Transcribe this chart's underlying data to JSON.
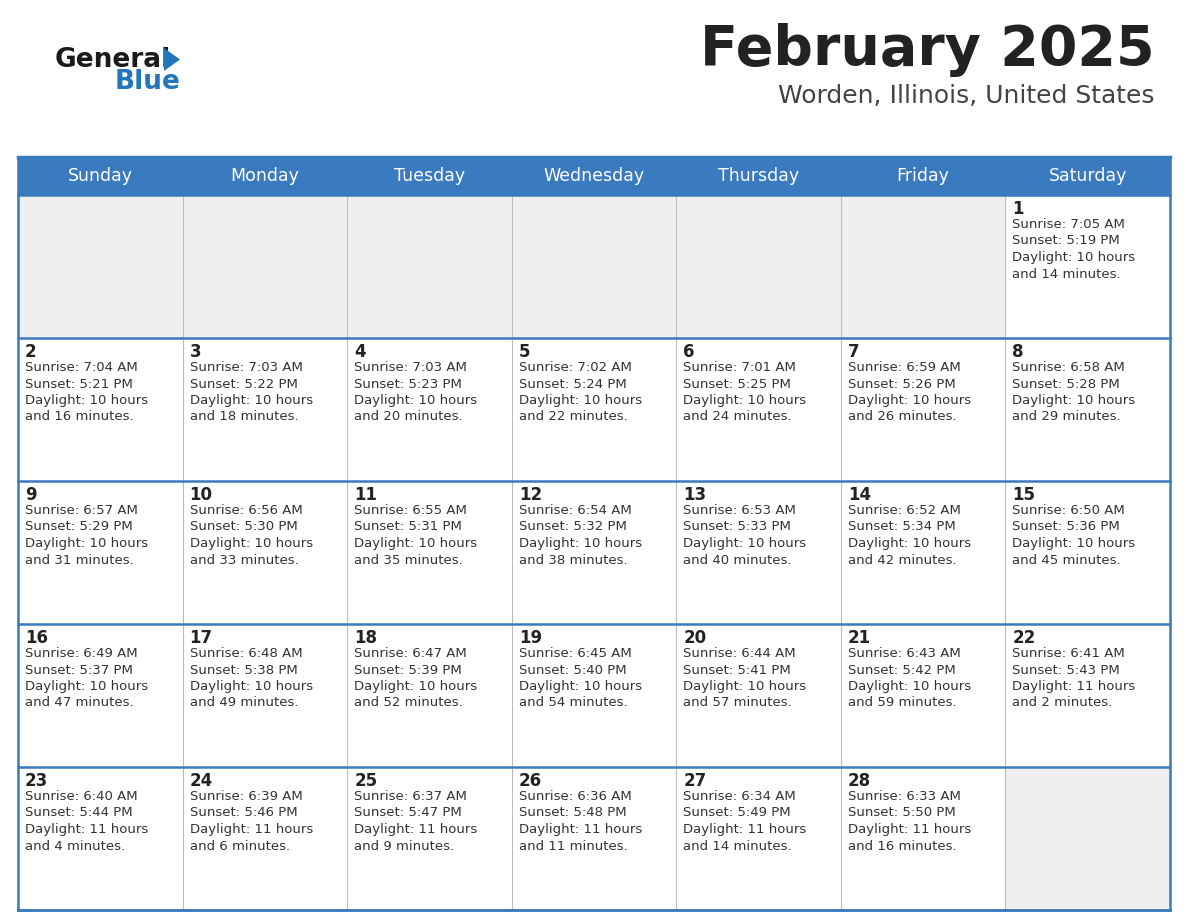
{
  "title": "February 2025",
  "subtitle": "Worden, Illinois, United States",
  "header_bg": "#3a7abf",
  "header_text_color": "#FFFFFF",
  "cell_bg_light": "#EFEFEF",
  "cell_bg_white": "#FFFFFF",
  "border_color": "#3a7abf",
  "grid_color": "#BBBBBB",
  "day_names": [
    "Sunday",
    "Monday",
    "Tuesday",
    "Wednesday",
    "Thursday",
    "Friday",
    "Saturday"
  ],
  "title_color": "#222222",
  "subtitle_color": "#444444",
  "day_num_color": "#222222",
  "info_color": "#333333",
  "logo_general_color": "#1a1a1a",
  "logo_blue_color": "#2575BB",
  "weeks": [
    [
      {
        "day": "",
        "sunrise": "",
        "sunset": "",
        "daylight": ""
      },
      {
        "day": "",
        "sunrise": "",
        "sunset": "",
        "daylight": ""
      },
      {
        "day": "",
        "sunrise": "",
        "sunset": "",
        "daylight": ""
      },
      {
        "day": "",
        "sunrise": "",
        "sunset": "",
        "daylight": ""
      },
      {
        "day": "",
        "sunrise": "",
        "sunset": "",
        "daylight": ""
      },
      {
        "day": "",
        "sunrise": "",
        "sunset": "",
        "daylight": ""
      },
      {
        "day": "1",
        "sunrise": "7:05 AM",
        "sunset": "5:19 PM",
        "daylight": "10 hours\nand 14 minutes."
      }
    ],
    [
      {
        "day": "2",
        "sunrise": "7:04 AM",
        "sunset": "5:21 PM",
        "daylight": "10 hours\nand 16 minutes."
      },
      {
        "day": "3",
        "sunrise": "7:03 AM",
        "sunset": "5:22 PM",
        "daylight": "10 hours\nand 18 minutes."
      },
      {
        "day": "4",
        "sunrise": "7:03 AM",
        "sunset": "5:23 PM",
        "daylight": "10 hours\nand 20 minutes."
      },
      {
        "day": "5",
        "sunrise": "7:02 AM",
        "sunset": "5:24 PM",
        "daylight": "10 hours\nand 22 minutes."
      },
      {
        "day": "6",
        "sunrise": "7:01 AM",
        "sunset": "5:25 PM",
        "daylight": "10 hours\nand 24 minutes."
      },
      {
        "day": "7",
        "sunrise": "6:59 AM",
        "sunset": "5:26 PM",
        "daylight": "10 hours\nand 26 minutes."
      },
      {
        "day": "8",
        "sunrise": "6:58 AM",
        "sunset": "5:28 PM",
        "daylight": "10 hours\nand 29 minutes."
      }
    ],
    [
      {
        "day": "9",
        "sunrise": "6:57 AM",
        "sunset": "5:29 PM",
        "daylight": "10 hours\nand 31 minutes."
      },
      {
        "day": "10",
        "sunrise": "6:56 AM",
        "sunset": "5:30 PM",
        "daylight": "10 hours\nand 33 minutes."
      },
      {
        "day": "11",
        "sunrise": "6:55 AM",
        "sunset": "5:31 PM",
        "daylight": "10 hours\nand 35 minutes."
      },
      {
        "day": "12",
        "sunrise": "6:54 AM",
        "sunset": "5:32 PM",
        "daylight": "10 hours\nand 38 minutes."
      },
      {
        "day": "13",
        "sunrise": "6:53 AM",
        "sunset": "5:33 PM",
        "daylight": "10 hours\nand 40 minutes."
      },
      {
        "day": "14",
        "sunrise": "6:52 AM",
        "sunset": "5:34 PM",
        "daylight": "10 hours\nand 42 minutes."
      },
      {
        "day": "15",
        "sunrise": "6:50 AM",
        "sunset": "5:36 PM",
        "daylight": "10 hours\nand 45 minutes."
      }
    ],
    [
      {
        "day": "16",
        "sunrise": "6:49 AM",
        "sunset": "5:37 PM",
        "daylight": "10 hours\nand 47 minutes."
      },
      {
        "day": "17",
        "sunrise": "6:48 AM",
        "sunset": "5:38 PM",
        "daylight": "10 hours\nand 49 minutes."
      },
      {
        "day": "18",
        "sunrise": "6:47 AM",
        "sunset": "5:39 PM",
        "daylight": "10 hours\nand 52 minutes."
      },
      {
        "day": "19",
        "sunrise": "6:45 AM",
        "sunset": "5:40 PM",
        "daylight": "10 hours\nand 54 minutes."
      },
      {
        "day": "20",
        "sunrise": "6:44 AM",
        "sunset": "5:41 PM",
        "daylight": "10 hours\nand 57 minutes."
      },
      {
        "day": "21",
        "sunrise": "6:43 AM",
        "sunset": "5:42 PM",
        "daylight": "10 hours\nand 59 minutes."
      },
      {
        "day": "22",
        "sunrise": "6:41 AM",
        "sunset": "5:43 PM",
        "daylight": "11 hours\nand 2 minutes."
      }
    ],
    [
      {
        "day": "23",
        "sunrise": "6:40 AM",
        "sunset": "5:44 PM",
        "daylight": "11 hours\nand 4 minutes."
      },
      {
        "day": "24",
        "sunrise": "6:39 AM",
        "sunset": "5:46 PM",
        "daylight": "11 hours\nand 6 minutes."
      },
      {
        "day": "25",
        "sunrise": "6:37 AM",
        "sunset": "5:47 PM",
        "daylight": "11 hours\nand 9 minutes."
      },
      {
        "day": "26",
        "sunrise": "6:36 AM",
        "sunset": "5:48 PM",
        "daylight": "11 hours\nand 11 minutes."
      },
      {
        "day": "27",
        "sunrise": "6:34 AM",
        "sunset": "5:49 PM",
        "daylight": "11 hours\nand 14 minutes."
      },
      {
        "day": "28",
        "sunrise": "6:33 AM",
        "sunset": "5:50 PM",
        "daylight": "11 hours\nand 16 minutes."
      },
      {
        "day": "",
        "sunrise": "",
        "sunset": "",
        "daylight": ""
      }
    ]
  ]
}
